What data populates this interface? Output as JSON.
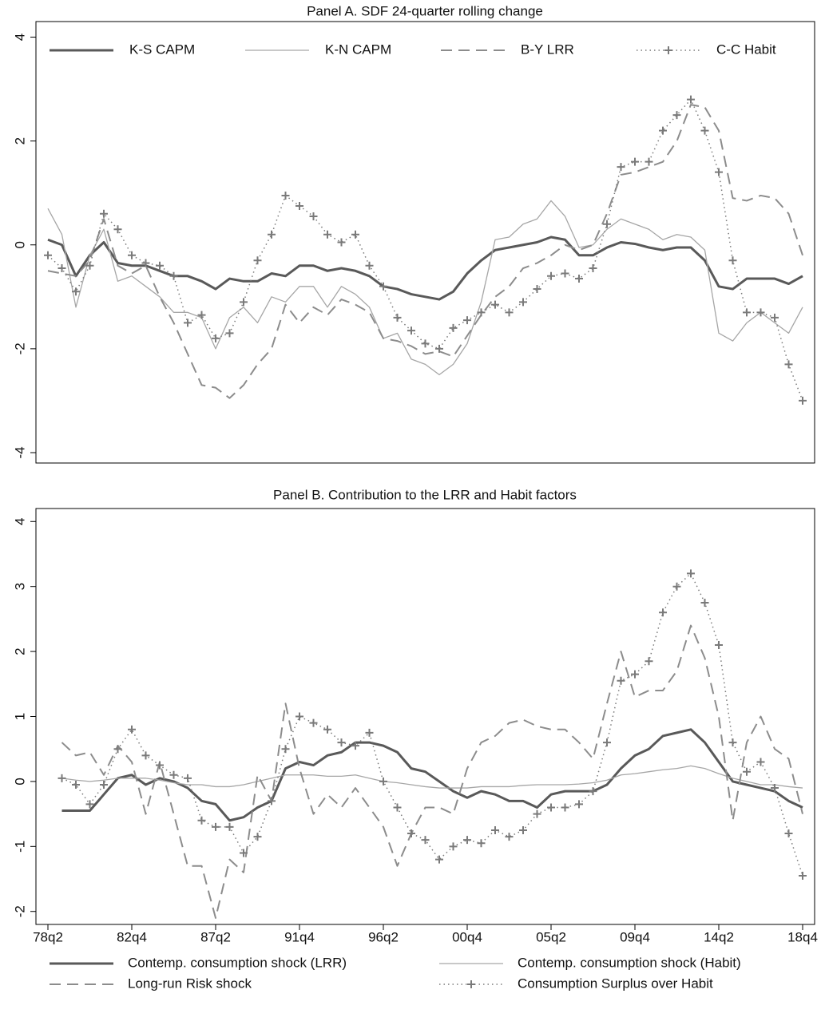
{
  "chart_data": [
    {
      "type": "line",
      "title": "Panel A.  SDF 24-quarter rolling change",
      "ylim": [
        -4.2,
        4.3
      ],
      "yticks": [
        -4,
        -2,
        0,
        2,
        4
      ],
      "legend": "inside-top",
      "series": [
        {
          "name": "K-S CAPM",
          "color": "#595959",
          "width": 3,
          "dash": "solid",
          "values": [
            0.1,
            0,
            -0.6,
            -0.2,
            0.05,
            -0.35,
            -0.4,
            -0.4,
            -0.5,
            -0.6,
            -0.6,
            -0.7,
            -0.85,
            -0.65,
            -0.7,
            -0.7,
            -0.55,
            -0.6,
            -0.4,
            -0.4,
            -0.5,
            -0.45,
            -0.5,
            -0.6,
            -0.8,
            -0.85,
            -0.95,
            -1.0,
            -1.05,
            -0.9,
            -0.55,
            -0.3,
            -0.1,
            -0.05,
            0,
            0.05,
            0.15,
            0.1,
            -0.2,
            -0.2,
            -0.05,
            0.05,
            0.02,
            -0.05,
            -0.1,
            -0.05,
            -0.05,
            -0.3,
            -0.8,
            -0.85,
            -0.65,
            -0.65,
            -0.65,
            -0.75,
            -0.6
          ]
        },
        {
          "name": "K-N CAPM",
          "color": "#a6a6a6",
          "width": 1.3,
          "dash": "solid",
          "values": [
            0.7,
            0.2,
            -1.2,
            -0.2,
            0.3,
            -0.7,
            -0.6,
            -0.8,
            -1.0,
            -1.3,
            -1.3,
            -1.4,
            -2.0,
            -1.4,
            -1.2,
            -1.5,
            -1.0,
            -1.1,
            -0.8,
            -0.8,
            -1.2,
            -0.8,
            -0.95,
            -1.2,
            -1.8,
            -1.7,
            -2.2,
            -2.3,
            -2.5,
            -2.3,
            -1.9,
            -1.1,
            0.1,
            0.15,
            0.4,
            0.5,
            0.85,
            0.55,
            -0.05,
            0,
            0.3,
            0.5,
            0.4,
            0.3,
            0.1,
            0.2,
            0.15,
            -0.1,
            -1.7,
            -1.85,
            -1.5,
            -1.3,
            -1.5,
            -1.7,
            -1.2
          ]
        },
        {
          "name": "B-Y LRR",
          "color": "#8c8c8c",
          "width": 2,
          "dash": "dash",
          "values": [
            -0.5,
            -0.55,
            -0.6,
            -0.3,
            0.5,
            -0.4,
            -0.55,
            -0.4,
            -1.0,
            -1.5,
            -2.1,
            -2.7,
            -2.75,
            -2.95,
            -2.7,
            -2.3,
            -2.0,
            -1.15,
            -1.5,
            -1.2,
            -1.35,
            -1.05,
            -1.15,
            -1.3,
            -1.8,
            -1.85,
            -1.95,
            -2.1,
            -2.05,
            -2.15,
            -1.75,
            -1.35,
            -1.0,
            -0.8,
            -0.45,
            -0.35,
            -0.2,
            0,
            -0.1,
            0,
            0.6,
            1.35,
            1.4,
            1.5,
            1.6,
            2.0,
            2.7,
            2.65,
            2.2,
            0.9,
            0.85,
            0.95,
            0.9,
            0.6,
            -0.2
          ]
        },
        {
          "name": "C-C Habit",
          "color": "#7a7a7a",
          "width": 1.5,
          "dash": "dot",
          "marker": "+",
          "values": [
            -0.2,
            -0.45,
            -0.9,
            -0.4,
            0.6,
            0.3,
            -0.2,
            -0.35,
            -0.4,
            -0.6,
            -1.5,
            -1.35,
            -1.8,
            -1.7,
            -1.1,
            -0.3,
            0.2,
            0.95,
            0.75,
            0.55,
            0.2,
            0.05,
            0.2,
            -0.4,
            -0.8,
            -1.4,
            -1.65,
            -1.9,
            -2.0,
            -1.6,
            -1.45,
            -1.3,
            -1.15,
            -1.3,
            -1.1,
            -0.85,
            -0.6,
            -0.55,
            -0.65,
            -0.45,
            0.4,
            1.5,
            1.6,
            1.6,
            2.2,
            2.5,
            2.8,
            2.2,
            1.4,
            -0.3,
            -1.3,
            -1.3,
            -1.4,
            -2.3,
            -3.0
          ]
        }
      ]
    },
    {
      "type": "line",
      "title": "Panel B.  Contribution to the LRR and Habit factors",
      "ylim": [
        -2.2,
        4.2
      ],
      "yticks": [
        -2,
        -1,
        0,
        1,
        2,
        3,
        4
      ],
      "legend": "below",
      "categories": [
        "78q2",
        null,
        null,
        null,
        null,
        null,
        "82q4",
        null,
        null,
        null,
        null,
        null,
        "87q2",
        null,
        null,
        null,
        null,
        null,
        "91q4",
        null,
        null,
        null,
        null,
        null,
        "96q2",
        null,
        null,
        null,
        null,
        null,
        "00q4",
        null,
        null,
        null,
        null,
        null,
        "05q2",
        null,
        null,
        null,
        null,
        null,
        "09q4",
        null,
        null,
        null,
        null,
        null,
        "14q2",
        null,
        null,
        null,
        null,
        null,
        "18q4"
      ],
      "series": [
        {
          "name": "Contemp. consumption shock (LRR)",
          "color": "#595959",
          "width": 3,
          "dash": "solid",
          "values": [
            null,
            -0.45,
            -0.45,
            -0.45,
            -0.2,
            0.05,
            0.1,
            -0.05,
            0.05,
            0,
            -0.1,
            -0.3,
            -0.35,
            -0.6,
            -0.55,
            -0.4,
            -0.3,
            0.2,
            0.3,
            0.25,
            0.4,
            0.45,
            0.6,
            0.6,
            0.55,
            0.45,
            0.2,
            0.15,
            0,
            -0.15,
            -0.25,
            -0.15,
            -0.2,
            -0.3,
            -0.3,
            -0.4,
            -0.2,
            -0.15,
            -0.15,
            -0.15,
            -0.05,
            0.2,
            0.4,
            0.5,
            0.7,
            0.75,
            0.8,
            0.6,
            0.3,
            0,
            -0.05,
            -0.1,
            -0.15,
            -0.3,
            -0.4
          ]
        },
        {
          "name": "Contemp.  consumption shock (Habit)",
          "color": "#a6a6a6",
          "width": 1.3,
          "dash": "solid",
          "values": [
            null,
            0.05,
            0.02,
            0,
            0.02,
            0.05,
            0.05,
            0.05,
            0.02,
            -0.02,
            -0.05,
            -0.05,
            -0.08,
            -0.08,
            -0.05,
            0,
            0.05,
            0.1,
            0.1,
            0.1,
            0.08,
            0.08,
            0.1,
            0.05,
            0,
            -0.02,
            -0.05,
            -0.08,
            -0.1,
            -0.1,
            -0.1,
            -0.08,
            -0.08,
            -0.08,
            -0.06,
            -0.05,
            -0.05,
            -0.05,
            -0.04,
            -0.02,
            0.02,
            0.1,
            0.12,
            0.15,
            0.18,
            0.2,
            0.24,
            0.2,
            0.12,
            0.05,
            0,
            -0.05,
            -0.05,
            -0.08,
            -0.1
          ]
        },
        {
          "name": "Long-run Risk shock",
          "color": "#8c8c8c",
          "width": 2,
          "dash": "dash",
          "values": [
            null,
            0.6,
            0.4,
            0.45,
            0.1,
            0.55,
            0.3,
            -0.5,
            0.3,
            -0.5,
            -1.3,
            -1.3,
            -2.1,
            -1.2,
            -1.4,
            0.1,
            -0.3,
            1.2,
            0.2,
            -0.5,
            -0.2,
            -0.4,
            -0.1,
            -0.4,
            -0.7,
            -1.3,
            -0.8,
            -0.4,
            -0.4,
            -0.5,
            0.2,
            0.6,
            0.7,
            0.9,
            0.95,
            0.85,
            0.8,
            0.8,
            0.6,
            0.35,
            1.2,
            2.0,
            1.3,
            1.4,
            1.4,
            1.7,
            2.4,
            1.9,
            1.0,
            -0.6,
            0.6,
            1.0,
            0.5,
            0.35,
            -0.5
          ]
        },
        {
          "name": "Consumption Surplus over Habit",
          "color": "#7a7a7a",
          "width": 1.5,
          "dash": "dot",
          "marker": "+",
          "values": [
            null,
            0.05,
            -0.05,
            -0.35,
            -0.05,
            0.5,
            0.8,
            0.4,
            0.25,
            0.1,
            0.05,
            -0.6,
            -0.7,
            -0.7,
            -1.1,
            -0.85,
            -0.3,
            0.5,
            1.0,
            0.9,
            0.8,
            0.6,
            0.55,
            0.75,
            0,
            -0.4,
            -0.8,
            -0.9,
            -1.2,
            -1.0,
            -0.9,
            -0.95,
            -0.75,
            -0.85,
            -0.75,
            -0.5,
            -0.4,
            -0.4,
            -0.35,
            -0.15,
            0.6,
            1.55,
            1.65,
            1.85,
            2.6,
            3.0,
            3.2,
            2.75,
            2.1,
            0.6,
            0.15,
            0.3,
            -0.1,
            -0.8,
            -1.45
          ]
        }
      ]
    }
  ]
}
